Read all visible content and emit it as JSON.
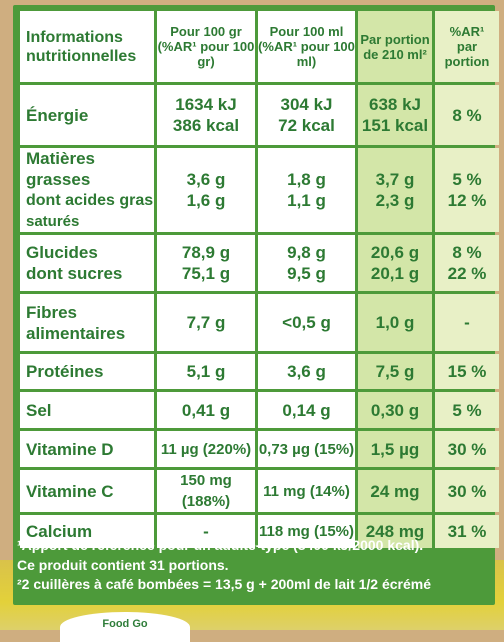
{
  "header": {
    "col1": "Informations nutritionnelles",
    "col2_line1": "Pour 100 gr",
    "col2_line2": "(%AR¹ pour 100 gr)",
    "col3_line1": "Pour 100 ml",
    "col3_line2": "(%AR¹ pour 100 ml)",
    "col4_line1": "Par portion",
    "col4_line2": "de 210 ml²",
    "col5_line1": "%AR¹",
    "col5_line2": "par portion"
  },
  "rows": [
    {
      "label": [
        "Énergie"
      ],
      "per100g": [
        "1634 kJ",
        "386 kcal"
      ],
      "per100ml": [
        "304 kJ",
        "72 kcal"
      ],
      "portion": [
        "638 kJ",
        "151 kcal"
      ],
      "pct": [
        "8 %"
      ]
    },
    {
      "label": [
        "Matières grasses",
        "dont acides gras",
        "saturés"
      ],
      "per100g": [
        "3,6 g",
        "1,6 g"
      ],
      "per100ml": [
        "1,8 g",
        "1,1 g"
      ],
      "portion": [
        "3,7 g",
        "2,3 g"
      ],
      "pct": [
        "5 %",
        "12 %"
      ]
    },
    {
      "label": [
        "Glucides",
        "dont sucres"
      ],
      "per100g": [
        "78,9 g",
        "75,1 g"
      ],
      "per100ml": [
        "9,8 g",
        "9,5 g"
      ],
      "portion": [
        "20,6 g",
        "20,1 g"
      ],
      "pct": [
        "8 %",
        "22 %"
      ]
    },
    {
      "label": [
        "Fibres",
        "alimentaires"
      ],
      "per100g": [
        "7,7 g"
      ],
      "per100ml": [
        "<0,5 g"
      ],
      "portion": [
        "1,0 g"
      ],
      "pct": [
        "-"
      ]
    },
    {
      "label": [
        "Protéines"
      ],
      "per100g": [
        "5,1 g"
      ],
      "per100ml": [
        "3,6 g"
      ],
      "portion": [
        "7,5 g"
      ],
      "pct": [
        "15 %"
      ]
    },
    {
      "label": [
        "Sel"
      ],
      "per100g": [
        "0,41 g"
      ],
      "per100ml": [
        "0,14 g"
      ],
      "portion": [
        "0,30 g"
      ],
      "pct": [
        "5 %"
      ]
    },
    {
      "label": [
        "Vitamine D"
      ],
      "per100g": [
        "11 µg (220%)"
      ],
      "per100ml": [
        "0,73 µg (15%)"
      ],
      "portion": [
        "1,5 µg"
      ],
      "pct": [
        "30 %"
      ]
    },
    {
      "label": [
        "Vitamine C"
      ],
      "per100g": [
        "150 mg (188%)"
      ],
      "per100ml": [
        "11 mg (14%)"
      ],
      "portion": [
        "24 mg"
      ],
      "pct": [
        "30 %"
      ]
    },
    {
      "label": [
        "Calcium"
      ],
      "per100g": [
        "-"
      ],
      "per100ml": [
        "118 mg (15%)"
      ],
      "portion": [
        "248 mg"
      ],
      "pct": [
        "31 %"
      ]
    }
  ],
  "footnotes": [
    "¹Apport de référence pour un adulte-type (8400 kJ/2000 kcal).",
    "Ce produit contient 31 portions.",
    "²2 cuillères à café bombées = 13,5 g + 200ml de lait 1/2 écrémé"
  ],
  "background_text": "Food Go",
  "colors": {
    "panel": "#4d9a3a",
    "text": "#2d7a33",
    "portion_col": "#d3e6a8",
    "pct_col": "#e8f0c6",
    "background": "#cfae80"
  }
}
